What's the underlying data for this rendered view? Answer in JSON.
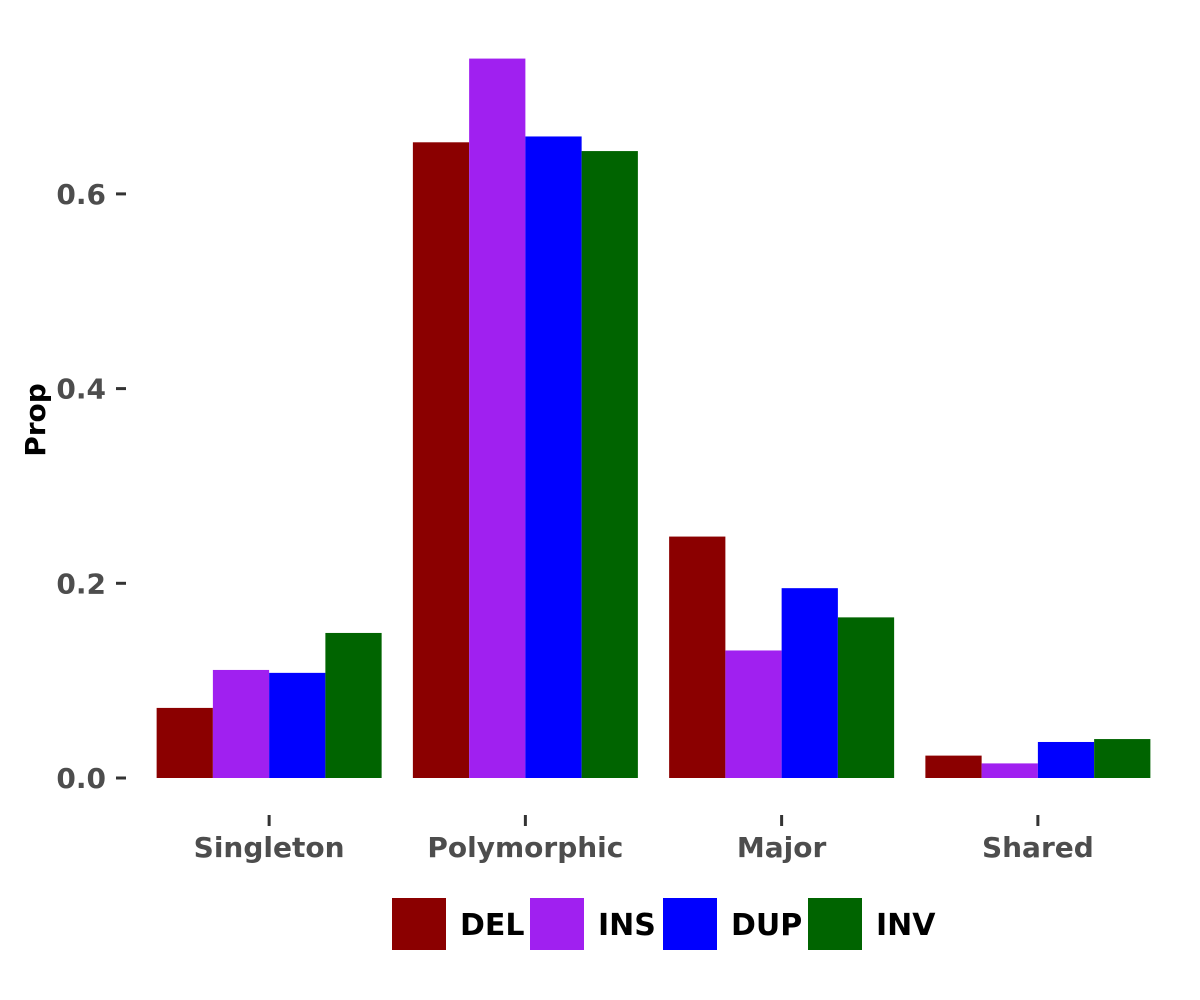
{
  "chart_data": {
    "type": "bar",
    "ylabel": "Prop",
    "ylim": [
      0,
      0.75
    ],
    "yticks": [
      "0.0",
      "0.2",
      "0.4",
      "0.6"
    ],
    "categories": [
      "Singleton",
      "Polymorphic",
      "Major",
      "Shared"
    ],
    "series": [
      {
        "name": "DEL",
        "color": "#8B0000",
        "values": [
          0.072,
          0.653,
          0.248,
          0.023
        ]
      },
      {
        "name": "INS",
        "color": "#A020F0",
        "values": [
          0.111,
          0.739,
          0.131,
          0.015
        ]
      },
      {
        "name": "DUP",
        "color": "#0000FF",
        "values": [
          0.108,
          0.659,
          0.195,
          0.037
        ]
      },
      {
        "name": "INV",
        "color": "#006400",
        "values": [
          0.149,
          0.644,
          0.165,
          0.04
        ]
      }
    ],
    "grid": false,
    "legend_position": "bottom"
  }
}
